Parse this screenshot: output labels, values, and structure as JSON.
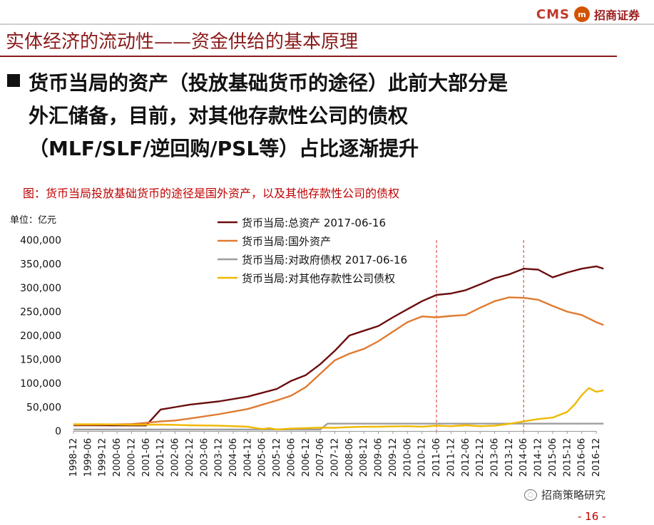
{
  "brand": {
    "cms": "CMS",
    "logo_text": "m",
    "name_cn": "招商证券"
  },
  "slide_title": "实体经济的流动性——资金供给的基本原理",
  "headline_lines": [
    "货币当局的资产（投放基础货币的途径）此前大部分是",
    "外汇储备，目前，对其他存款性公司的债权",
    "（MLF/SLF/逆回购/PSL等）占比逐渐提升"
  ],
  "figure_caption": "图：货币当局投放基础货币的途径是国外资产，以及其他存款性公司的债权",
  "unit_label": "单位：亿元",
  "footer": {
    "wechat": "招商策略研究",
    "page": "- 16 -"
  },
  "chart_data": {
    "type": "line",
    "title": "",
    "ylabel": "亿元",
    "ylim": [
      0,
      400000
    ],
    "yticks": [
      "0",
      "50,000",
      "100,000",
      "150,000",
      "200,000",
      "250,000",
      "300,000",
      "350,000",
      "400,000"
    ],
    "x_tick_labels": [
      "1998-12",
      "1999-06",
      "1999-12",
      "2000-06",
      "2000-12",
      "2001-06",
      "2001-12",
      "2002-06",
      "2002-12",
      "2003-06",
      "2003-12",
      "2004-06",
      "2004-12",
      "2005-06",
      "2005-12",
      "2006-06",
      "2006-12",
      "2007-06",
      "2007-12",
      "2008-06",
      "2008-12",
      "2009-06",
      "2009-12",
      "2010-06",
      "2010-12",
      "2011-06",
      "2011-12",
      "2012-06",
      "2012-12",
      "2013-06",
      "2013-12",
      "2014-06",
      "2014-12",
      "2015-06",
      "2015-12",
      "2016-06",
      "2016-12"
    ],
    "vlines": [
      "2011-06",
      "2014-06"
    ],
    "series": [
      {
        "name": "货币当局:总资产 2017-06-16",
        "color": "#6b0d0d",
        "x": [
          0,
          5,
          6,
          7,
          8,
          10,
          12,
          14,
          15,
          16,
          17,
          18,
          19,
          20,
          21,
          22,
          23,
          24,
          25,
          26,
          27,
          28,
          29,
          30,
          31,
          32,
          33,
          34,
          35,
          36,
          36.5
        ],
        "values": [
          12000,
          11500,
          45000,
          50000,
          55000,
          62000,
          72000,
          88000,
          105000,
          117000,
          140000,
          168000,
          200000,
          210000,
          220000,
          238000,
          255000,
          272000,
          285000,
          288000,
          295000,
          307000,
          320000,
          328000,
          340000,
          338000,
          322000,
          332000,
          340000,
          345000,
          340000
        ]
      },
      {
        "name": "货币当局:国外资产",
        "color": "#e07a30",
        "x": [
          0,
          2,
          4,
          5,
          6,
          7,
          8,
          10,
          12,
          14,
          15,
          16,
          17,
          18,
          19,
          20,
          21,
          22,
          23,
          24,
          25,
          26,
          27,
          28,
          29,
          30,
          31,
          32,
          33,
          34,
          35,
          36,
          36.5
        ],
        "values": [
          13000,
          13500,
          14500,
          17000,
          20000,
          22000,
          26000,
          35000,
          46000,
          64000,
          74000,
          92000,
          120000,
          148000,
          162000,
          172000,
          188000,
          208000,
          228000,
          240000,
          238000,
          241000,
          243000,
          258000,
          272000,
          280000,
          279000,
          275000,
          262000,
          250000,
          243000,
          228000,
          222000
        ]
      },
      {
        "name": "货币当局:对政府债权 2017-06-16",
        "color": "#9e9e9e",
        "x": [
          0,
          17,
          17.5,
          36.5
        ],
        "values": [
          3000,
          3000,
          15300,
          15300
        ]
      },
      {
        "name": "货币当局:对其他存款性公司债权",
        "color": "#f0b800",
        "x": [
          0,
          2,
          4,
          6,
          8,
          10,
          12,
          13,
          13.5,
          14,
          15,
          16,
          17,
          18,
          19,
          20,
          21,
          22,
          23,
          24,
          25,
          26,
          27,
          28,
          29,
          30,
          31,
          32,
          33,
          34,
          34.5,
          35,
          35.5,
          36,
          36.5
        ],
        "values": [
          14000,
          14000,
          13000,
          13500,
          12000,
          11000,
          9000,
          4000,
          6000,
          3000,
          5000,
          6000,
          7000,
          6500,
          8000,
          9000,
          9000,
          9500,
          10000,
          9000,
          11000,
          10000,
          12000,
          10000,
          11000,
          15000,
          20000,
          25000,
          28000,
          40000,
          55000,
          75000,
          90000,
          82000,
          85000
        ]
      }
    ]
  }
}
